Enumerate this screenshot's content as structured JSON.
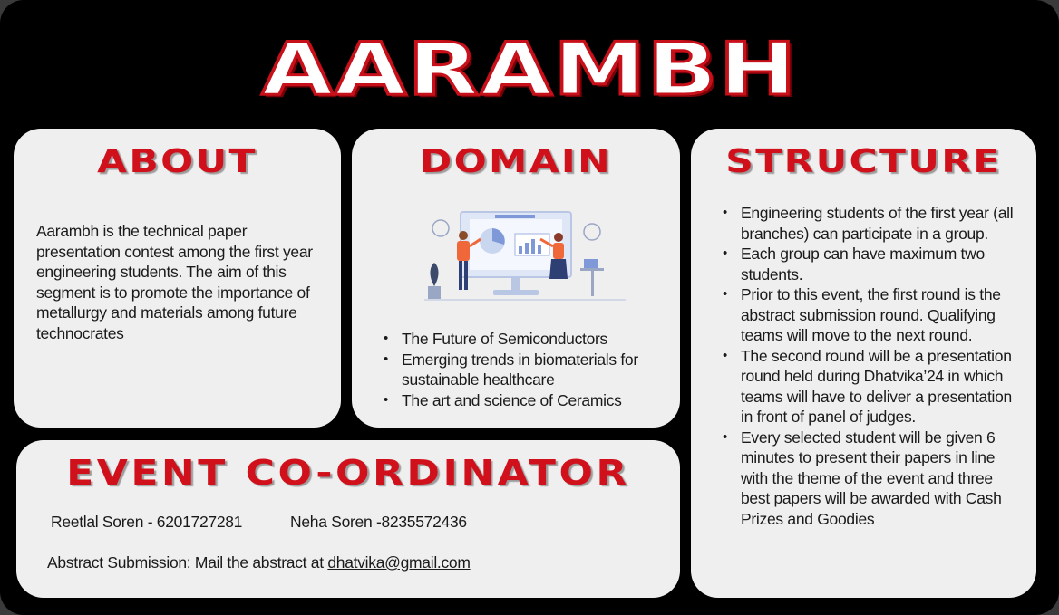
{
  "title": "AARAMBH",
  "about": {
    "heading": "ABOUT",
    "text": "Aarambh is the technical paper presentation contest among the first year engineering students. The aim of this segment is to promote the importance of metallurgy and materials among future technocrates"
  },
  "domain": {
    "heading": "DOMAIN",
    "illustration_icon": "presentation-illustration",
    "items": [
      "The Future of Semiconductors",
      "Emerging trends in biomaterials for sustainable healthcare",
      "The art and science of Ceramics"
    ]
  },
  "structure": {
    "heading": "STRUCTURE",
    "items": [
      "Engineering students of the first year (all branches) can participate in a group.",
      "Each group can have maximum two students.",
      "Prior to this event, the first round is the abstract submission round. Qualifying teams will move to the next round.",
      "The second round will be a presentation round held during Dhatvika’24 in which teams will have to deliver a presentation in front of panel of judges.",
      "Every selected student will be given 6 minutes to present their papers in line with the theme of the event and three best papers will be awarded with Cash Prizes and Goodies"
    ]
  },
  "coordinator": {
    "heading": "EVENT CO-ORDINATOR",
    "contact1": "Reetlal Soren - 6201727281",
    "contact2": "Neha Soren -8235572436",
    "abstract_prefix": "Abstract Submission: Mail the abstract at ",
    "email": "dhatvika@gmail.com"
  },
  "colors": {
    "background": "#000000",
    "card": "#efefef",
    "accent_red": "#d0111b"
  }
}
